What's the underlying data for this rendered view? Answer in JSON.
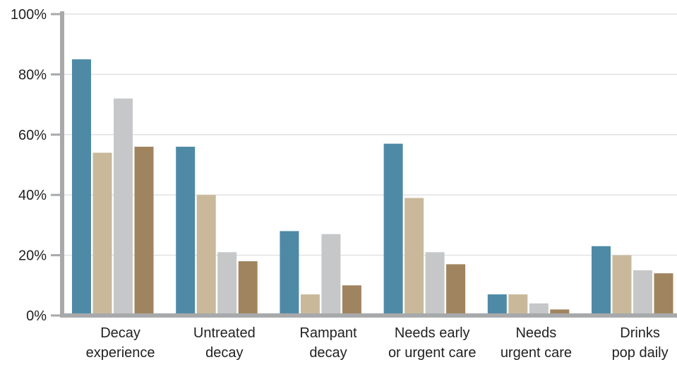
{
  "chart_data": {
    "type": "bar",
    "title": "",
    "xlabel": "",
    "ylabel": "",
    "categories": [
      [
        "Decay",
        "experience"
      ],
      [
        "Untreated",
        "decay"
      ],
      [
        "Rampant",
        "decay"
      ],
      [
        "Needs early",
        "or urgent care"
      ],
      [
        "Needs",
        "urgent care"
      ],
      [
        "Drinks",
        "pop daily"
      ]
    ],
    "series": [
      {
        "color": "#4e8aa6",
        "values": [
          85,
          56,
          28,
          57,
          7,
          23
        ]
      },
      {
        "color": "#c9b99a",
        "values": [
          54,
          40,
          7,
          39,
          7,
          20
        ]
      },
      {
        "color": "#c6c7c9",
        "values": [
          72,
          21,
          27,
          21,
          4,
          15
        ]
      },
      {
        "color": "#a0845f",
        "values": [
          56,
          18,
          10,
          17,
          2,
          14
        ]
      }
    ],
    "ylim": [
      0,
      100
    ],
    "yticks": [
      0,
      20,
      40,
      60,
      80,
      100
    ],
    "ytick_labels": [
      "0%",
      "20%",
      "40%",
      "60%",
      "80%",
      "100%"
    ],
    "grid": true,
    "legend": "none",
    "colors": {
      "grid": "#e2e2e2",
      "axis": "#a8a9ab",
      "text": "#222222"
    }
  }
}
